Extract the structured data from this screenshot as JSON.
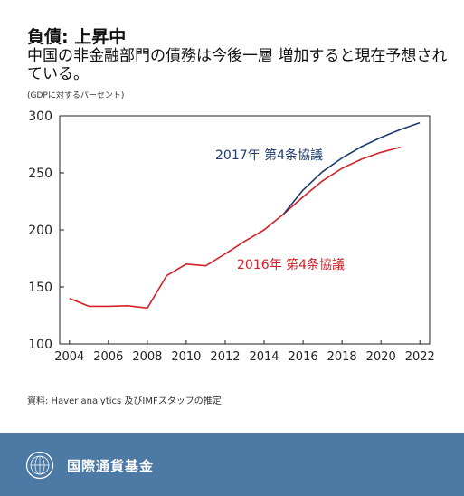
{
  "header": {
    "title": "負債: 上昇中",
    "subtitle": "中国の非金融部門の債務は今後一層 増加すると現在予想されている。",
    "unit": "(GDPに対するパーセント)"
  },
  "chart_data": {
    "type": "line",
    "title": "",
    "xlabel": "",
    "ylabel": "",
    "xlim": [
      2003.5,
      2022.5
    ],
    "ylim": [
      100,
      300
    ],
    "x_ticks": [
      2004,
      2006,
      2008,
      2010,
      2012,
      2014,
      2016,
      2018,
      2020,
      2022
    ],
    "y_ticks": [
      100,
      150,
      200,
      250,
      300
    ],
    "grid": false,
    "legend": "inline-labels",
    "series": [
      {
        "name": "2016年 第4条協議",
        "color": "#d42027",
        "x": [
          2004,
          2005,
          2006,
          2007,
          2008,
          2009,
          2010,
          2011,
          2012,
          2013,
          2014,
          2015,
          2016,
          2017,
          2018,
          2019,
          2020,
          2021
        ],
        "y": [
          140,
          133,
          133,
          133.5,
          131.5,
          160,
          170,
          168.5,
          179,
          190,
          200,
          214,
          229,
          243,
          254,
          262,
          268,
          272.5
        ]
      },
      {
        "name": "2017年 第4条協議",
        "color": "#1f3a6e",
        "x": [
          2015,
          2016,
          2017,
          2018,
          2019,
          2020,
          2021,
          2022
        ],
        "y": [
          214,
          235,
          251,
          263,
          273,
          281,
          288,
          294
        ]
      }
    ]
  },
  "source": "資料: Haver analytics 及びIMFスタッフの推定",
  "footer": {
    "org_name": "国際通貨基金",
    "background_color": "#4c7aa4",
    "logo_icon": "imf-seal-icon"
  }
}
